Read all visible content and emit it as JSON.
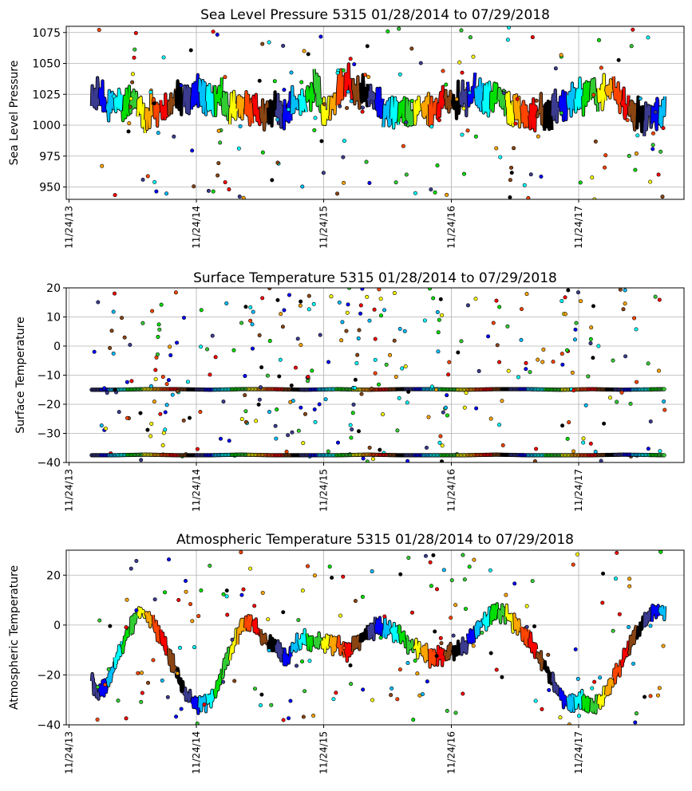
{
  "chart_data": [
    {
      "type": "line",
      "title": "Sea Level Pressure 5315  01/28/2014 to 07/29/2018",
      "ylabel": "Sea Level Pressure",
      "xlabel": "",
      "ylim": [
        940,
        1080
      ],
      "yticks": [
        950,
        975,
        1000,
        1025,
        1050,
        1075
      ],
      "x_range": [
        "2013-11-16",
        "2018-09-22"
      ],
      "xticks": [
        "11/24/13",
        "11/24/14",
        "11/24/15",
        "11/24/16",
        "11/24/17"
      ],
      "grid": true,
      "series_style": "colored daily segments with scattered outlier dots",
      "series": [
        {
          "values": [
            {
              "x": "2014-01-28",
              "y": 1018
            },
            {
              "x": "2014-02-15",
              "y": 1030
            },
            {
              "x": "2014-03-10",
              "y": 1015
            },
            {
              "x": "2014-04-05",
              "y": 1022
            },
            {
              "x": "2014-05-01",
              "y": 1012
            },
            {
              "x": "2014-06-01",
              "y": 1020
            },
            {
              "x": "2014-07-01",
              "y": 1008
            },
            {
              "x": "2014-08-01",
              "y": 1015
            },
            {
              "x": "2014-09-01",
              "y": 1010
            },
            {
              "x": "2014-10-01",
              "y": 1025
            },
            {
              "x": "2014-11-01",
              "y": 1020
            },
            {
              "x": "2014-12-01",
              "y": 1030
            },
            {
              "x": "2015-01-01",
              "y": 1018
            },
            {
              "x": "2015-02-01",
              "y": 1025
            },
            {
              "x": "2015-03-01",
              "y": 1010
            },
            {
              "x": "2015-04-01",
              "y": 1020
            },
            {
              "x": "2015-05-01",
              "y": 1012
            },
            {
              "x": "2015-06-01",
              "y": 1008
            },
            {
              "x": "2015-07-01",
              "y": 1015
            },
            {
              "x": "2015-08-01",
              "y": 1010
            },
            {
              "x": "2015-09-01",
              "y": 1015
            },
            {
              "x": "2015-10-01",
              "y": 1020
            },
            {
              "x": "2015-11-01",
              "y": 1030
            },
            {
              "x": "2015-12-01",
              "y": 1005
            },
            {
              "x": "2016-01-01",
              "y": 1025
            },
            {
              "x": "2016-02-01",
              "y": 1035
            },
            {
              "x": "2016-03-01",
              "y": 1030
            },
            {
              "x": "2016-04-01",
              "y": 1025
            },
            {
              "x": "2016-05-01",
              "y": 1015
            },
            {
              "x": "2016-06-01",
              "y": 1010
            },
            {
              "x": "2016-07-01",
              "y": 1015
            },
            {
              "x": "2016-08-01",
              "y": 1008
            },
            {
              "x": "2016-09-01",
              "y": 1015
            },
            {
              "x": "2016-10-01",
              "y": 1010
            },
            {
              "x": "2016-11-01",
              "y": 1020
            },
            {
              "x": "2016-12-01",
              "y": 1018
            },
            {
              "x": "2017-01-01",
              "y": 1022
            },
            {
              "x": "2017-02-01",
              "y": 1028
            },
            {
              "x": "2017-03-01",
              "y": 1020
            },
            {
              "x": "2017-04-01",
              "y": 1025
            },
            {
              "x": "2017-05-01",
              "y": 1015
            },
            {
              "x": "2017-06-01",
              "y": 1010
            },
            {
              "x": "2017-07-01",
              "y": 1005
            },
            {
              "x": "2017-08-01",
              "y": 1012
            },
            {
              "x": "2017-09-01",
              "y": 1010
            },
            {
              "x": "2017-10-01",
              "y": 1015
            },
            {
              "x": "2017-11-01",
              "y": 1020
            },
            {
              "x": "2017-12-01",
              "y": 1025
            },
            {
              "x": "2018-01-01",
              "y": 1028
            },
            {
              "x": "2018-02-01",
              "y": 1025
            },
            {
              "x": "2018-03-01",
              "y": 1030
            },
            {
              "x": "2018-04-01",
              "y": 1015
            },
            {
              "x": "2018-05-01",
              "y": 1010
            },
            {
              "x": "2018-06-01",
              "y": 1005
            },
            {
              "x": "2018-07-01",
              "y": 1012
            },
            {
              "x": "2018-07-29",
              "y": 1008
            }
          ]
        }
      ]
    },
    {
      "type": "scatter",
      "title": "Surface Temperature 5315  01/28/2014 to 07/29/2018",
      "ylabel": "Surface Temperature",
      "xlabel": "",
      "ylim": [
        -40,
        20
      ],
      "yticks": [
        -40,
        -30,
        -20,
        -10,
        0,
        10,
        20
      ],
      "x_range": [
        "2013-11-16",
        "2018-09-22"
      ],
      "xticks": [
        "11/24/13",
        "11/24/14",
        "11/24/15",
        "11/24/16",
        "11/24/17"
      ],
      "grid": true,
      "series_style": "two flat bands of dots plus scattered outliers",
      "series": [
        {
          "values": [
            {
              "x": "2014-01-28",
              "y": -15
            },
            {
              "x": "2014-04-01",
              "y": -15
            },
            {
              "x": "2014-07-01",
              "y": -14.8
            },
            {
              "x": "2014-10-01",
              "y": -14.8
            },
            {
              "x": "2015-01-01",
              "y": -15
            },
            {
              "x": "2015-04-01",
              "y": -14.8
            },
            {
              "x": "2015-07-01",
              "y": -14.8
            },
            {
              "x": "2015-10-01",
              "y": -15
            },
            {
              "x": "2016-01-01",
              "y": -14.8
            },
            {
              "x": "2016-04-01",
              "y": -15
            },
            {
              "x": "2016-07-01",
              "y": -14.8
            },
            {
              "x": "2016-10-01",
              "y": -14.8
            },
            {
              "x": "2017-01-01",
              "y": -15
            },
            {
              "x": "2017-04-01",
              "y": -14.8
            },
            {
              "x": "2017-07-01",
              "y": -14.8
            },
            {
              "x": "2017-10-01",
              "y": -15
            },
            {
              "x": "2018-01-01",
              "y": -14.8
            },
            {
              "x": "2018-04-01",
              "y": -15
            },
            {
              "x": "2018-07-29",
              "y": -14.8
            }
          ]
        },
        {
          "values": [
            {
              "x": "2014-01-28",
              "y": -37.5
            },
            {
              "x": "2014-04-01",
              "y": -37.5
            },
            {
              "x": "2014-07-01",
              "y": -37.3
            },
            {
              "x": "2014-10-01",
              "y": -37.5
            },
            {
              "x": "2015-01-01",
              "y": -37.5
            },
            {
              "x": "2015-04-01",
              "y": -37.3
            },
            {
              "x": "2015-07-01",
              "y": -37.5
            },
            {
              "x": "2015-10-01",
              "y": -37.5
            },
            {
              "x": "2016-01-01",
              "y": -37.5
            },
            {
              "x": "2016-04-01",
              "y": -37.3
            },
            {
              "x": "2016-07-01",
              "y": -37.5
            },
            {
              "x": "2016-10-01",
              "y": -37.5
            },
            {
              "x": "2017-01-01",
              "y": -37.5
            },
            {
              "x": "2017-04-01",
              "y": -37.3
            },
            {
              "x": "2017-07-01",
              "y": -37.5
            },
            {
              "x": "2017-10-01",
              "y": -37.5
            },
            {
              "x": "2018-01-01",
              "y": -37.5
            },
            {
              "x": "2018-04-01",
              "y": -37.3
            },
            {
              "x": "2018-07-29",
              "y": -37.5
            }
          ]
        }
      ]
    },
    {
      "type": "line",
      "title": "Atmospheric Temperature 5315  01/28/2014 to 07/29/2018",
      "ylabel": "Atmospheric Temperature",
      "xlabel": "",
      "ylim": [
        -40,
        30
      ],
      "yticks": [
        -40,
        -20,
        0,
        20
      ],
      "x_range": [
        "2013-11-16",
        "2018-09-22"
      ],
      "xticks": [
        "11/24/13",
        "11/24/14",
        "11/24/15",
        "11/24/16",
        "11/24/17"
      ],
      "grid": true,
      "series_style": "colored daily segments with scattered outlier dots",
      "series": [
        {
          "values": [
            {
              "x": "2014-01-28",
              "y": -22
            },
            {
              "x": "2014-02-15",
              "y": -28
            },
            {
              "x": "2014-03-05",
              "y": -25
            },
            {
              "x": "2014-03-25",
              "y": -20
            },
            {
              "x": "2014-04-15",
              "y": -12
            },
            {
              "x": "2014-05-05",
              "y": -5
            },
            {
              "x": "2014-05-25",
              "y": 1
            },
            {
              "x": "2014-06-15",
              "y": 5
            },
            {
              "x": "2014-07-05",
              "y": 4
            },
            {
              "x": "2014-07-25",
              "y": 0
            },
            {
              "x": "2014-08-15",
              "y": -5
            },
            {
              "x": "2014-09-05",
              "y": -12
            },
            {
              "x": "2014-09-25",
              "y": -18
            },
            {
              "x": "2014-10-15",
              "y": -25
            },
            {
              "x": "2014-11-05",
              "y": -30
            },
            {
              "x": "2014-12-01",
              "y": -32
            },
            {
              "x": "2015-01-01",
              "y": -30
            },
            {
              "x": "2015-01-25",
              "y": -25
            },
            {
              "x": "2015-02-15",
              "y": -15
            },
            {
              "x": "2015-03-15",
              "y": -6
            },
            {
              "x": "2015-04-05",
              "y": 0
            },
            {
              "x": "2015-05-01",
              "y": 1
            },
            {
              "x": "2015-05-25",
              "y": -3
            },
            {
              "x": "2015-06-20",
              "y": -8
            },
            {
              "x": "2015-07-15",
              "y": -10
            },
            {
              "x": "2015-08-10",
              "y": -14
            },
            {
              "x": "2015-09-05",
              "y": -8
            },
            {
              "x": "2015-10-01",
              "y": -5
            },
            {
              "x": "2015-11-01",
              "y": -7
            },
            {
              "x": "2015-12-01",
              "y": -7
            },
            {
              "x": "2016-01-01",
              "y": -8
            },
            {
              "x": "2016-02-01",
              "y": -11
            },
            {
              "x": "2016-03-01",
              "y": -7
            },
            {
              "x": "2016-04-01",
              "y": -3
            },
            {
              "x": "2016-05-01",
              "y": 0
            },
            {
              "x": "2016-06-01",
              "y": -2
            },
            {
              "x": "2016-07-01",
              "y": -4
            },
            {
              "x": "2016-08-01",
              "y": -8
            },
            {
              "x": "2016-09-01",
              "y": -10
            },
            {
              "x": "2016-10-01",
              "y": -13
            },
            {
              "x": "2016-11-01",
              "y": -12
            },
            {
              "x": "2016-12-01",
              "y": -11
            },
            {
              "x": "2017-01-01",
              "y": -8
            },
            {
              "x": "2017-02-01",
              "y": -3
            },
            {
              "x": "2017-03-01",
              "y": 2
            },
            {
              "x": "2017-04-01",
              "y": 6
            },
            {
              "x": "2017-05-01",
              "y": 4
            },
            {
              "x": "2017-06-01",
              "y": 0
            },
            {
              "x": "2017-07-01",
              "y": -5
            },
            {
              "x": "2017-08-01",
              "y": -12
            },
            {
              "x": "2017-09-01",
              "y": -20
            },
            {
              "x": "2017-10-01",
              "y": -28
            },
            {
              "x": "2017-11-01",
              "y": -32
            },
            {
              "x": "2017-12-01",
              "y": -30
            },
            {
              "x": "2018-01-01",
              "y": -33
            },
            {
              "x": "2018-02-01",
              "y": -30
            },
            {
              "x": "2018-03-01",
              "y": -22
            },
            {
              "x": "2018-04-01",
              "y": -14
            },
            {
              "x": "2018-05-01",
              "y": -5
            },
            {
              "x": "2018-06-01",
              "y": 2
            },
            {
              "x": "2018-07-01",
              "y": 6
            },
            {
              "x": "2018-07-29",
              "y": 4
            }
          ]
        }
      ]
    }
  ]
}
